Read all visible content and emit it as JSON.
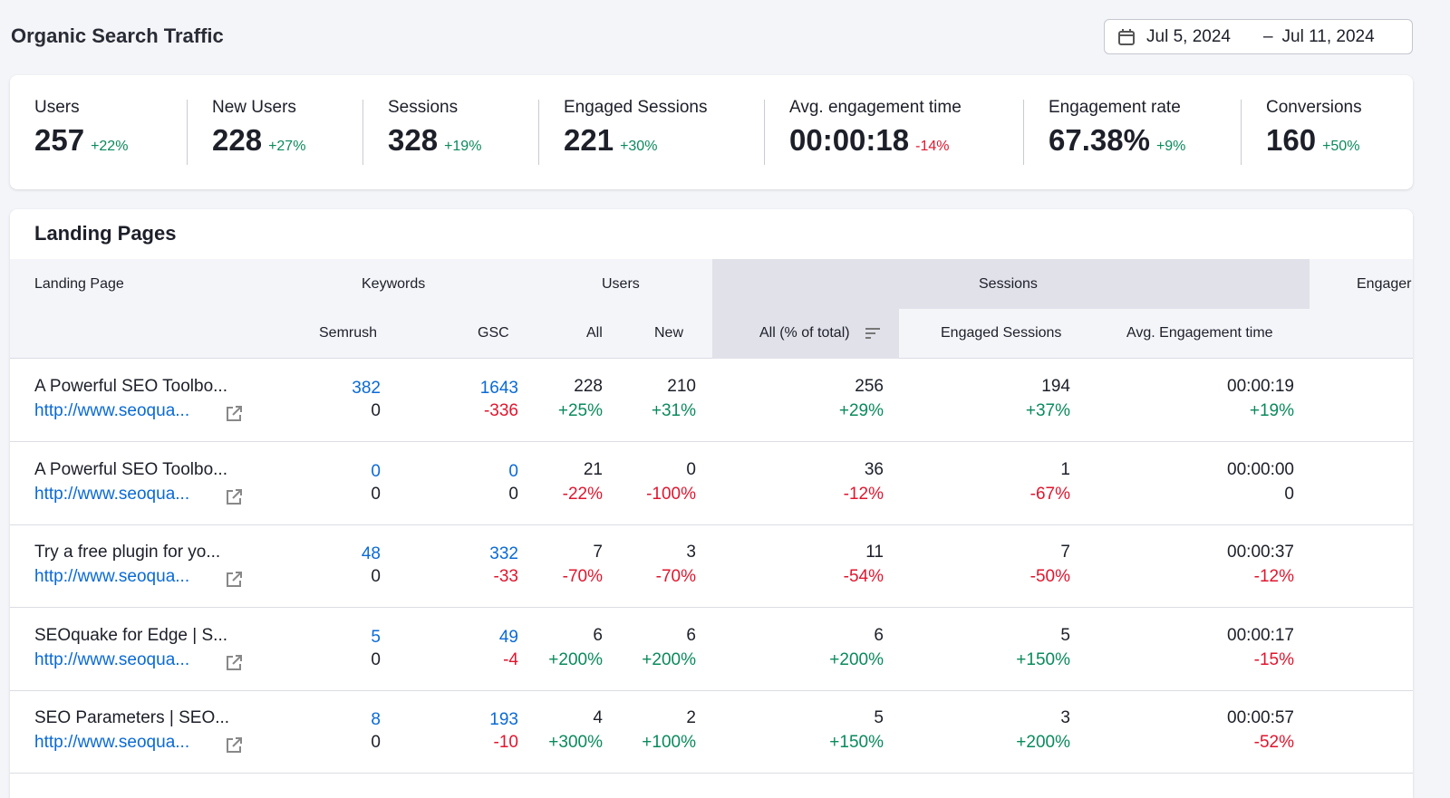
{
  "title": "Organic Search Traffic",
  "date_range": {
    "start": "Jul 5, 2024",
    "separator": "–",
    "end": "Jul 11, 2024",
    "icon": "calendar-icon"
  },
  "kpis": [
    {
      "label": "Users",
      "value": "257",
      "delta": "+22%",
      "trend": "pos"
    },
    {
      "label": "New Users",
      "value": "228",
      "delta": "+27%",
      "trend": "pos"
    },
    {
      "label": "Sessions",
      "value": "328",
      "delta": "+19%",
      "trend": "pos"
    },
    {
      "label": "Engaged Sessions",
      "value": "221",
      "delta": "+30%",
      "trend": "pos"
    },
    {
      "label": "Avg. engagement time",
      "value": "00:00:18",
      "delta": "-14%",
      "trend": "neg"
    },
    {
      "label": "Engagement rate",
      "value": "67.38%",
      "delta": "+9%",
      "trend": "pos"
    },
    {
      "label": "Conversions",
      "value": "160",
      "delta": "+50%",
      "trend": "pos"
    }
  ],
  "landing": {
    "title": "Landing Pages",
    "headers": {
      "page": "Landing Page",
      "keywords": "Keywords",
      "users": "Users",
      "sessions": "Sessions",
      "engagement": "Engager",
      "semrush": "Semrush",
      "gsc": "GSC",
      "all": "All",
      "new": "New",
      "sess_all": "All (% of total)",
      "engaged": "Engaged Sessions",
      "avg_time": "Avg. Engagement time"
    },
    "colors": {
      "positive": "#0a8a5c",
      "negative": "#e0162e",
      "link": "#0a6ad6",
      "highlight": "#e0e1e9"
    },
    "rows": [
      {
        "page": "A Powerful SEO Toolbo...",
        "url": "http://www.seoqua...",
        "semrush": "382",
        "semrush_d": "0",
        "gsc": "1643",
        "gsc_d": "-336",
        "users": "228",
        "users_d": "+25%",
        "new": "210",
        "new_d": "+31%",
        "sess": "256",
        "sess_d": "+29%",
        "eng": "194",
        "eng_d": "+37%",
        "time": "00:00:19",
        "time_d": "+19%"
      },
      {
        "page": "A Powerful SEO Toolbo...",
        "url": "http://www.seoqua...",
        "semrush": "0",
        "semrush_d": "0",
        "gsc": "0",
        "gsc_d": "0",
        "users": "21",
        "users_d": "-22%",
        "new": "0",
        "new_d": "-100%",
        "sess": "36",
        "sess_d": "-12%",
        "eng": "1",
        "eng_d": "-67%",
        "time": "00:00:00",
        "time_d": "0"
      },
      {
        "page": "Try a free plugin for yo...",
        "url": "http://www.seoqua...",
        "semrush": "48",
        "semrush_d": "0",
        "gsc": "332",
        "gsc_d": "-33",
        "users": "7",
        "users_d": "-70%",
        "new": "3",
        "new_d": "-70%",
        "sess": "11",
        "sess_d": "-54%",
        "eng": "7",
        "eng_d": "-50%",
        "time": "00:00:37",
        "time_d": "-12%"
      },
      {
        "page": "SEOquake for Edge | S...",
        "url": "http://www.seoqua...",
        "semrush": "5",
        "semrush_d": "0",
        "gsc": "49",
        "gsc_d": "-4",
        "users": "6",
        "users_d": "+200%",
        "new": "6",
        "new_d": "+200%",
        "sess": "6",
        "sess_d": "+200%",
        "eng": "5",
        "eng_d": "+150%",
        "time": "00:00:17",
        "time_d": "-15%"
      },
      {
        "page": "SEO Parameters | SEO...",
        "url": "http://www.seoqua...",
        "semrush": "8",
        "semrush_d": "0",
        "gsc": "193",
        "gsc_d": "-10",
        "users": "4",
        "users_d": "+300%",
        "new": "2",
        "new_d": "+100%",
        "sess": "5",
        "sess_d": "+150%",
        "eng": "3",
        "eng_d": "+200%",
        "time": "00:00:57",
        "time_d": "-52%"
      }
    ]
  }
}
